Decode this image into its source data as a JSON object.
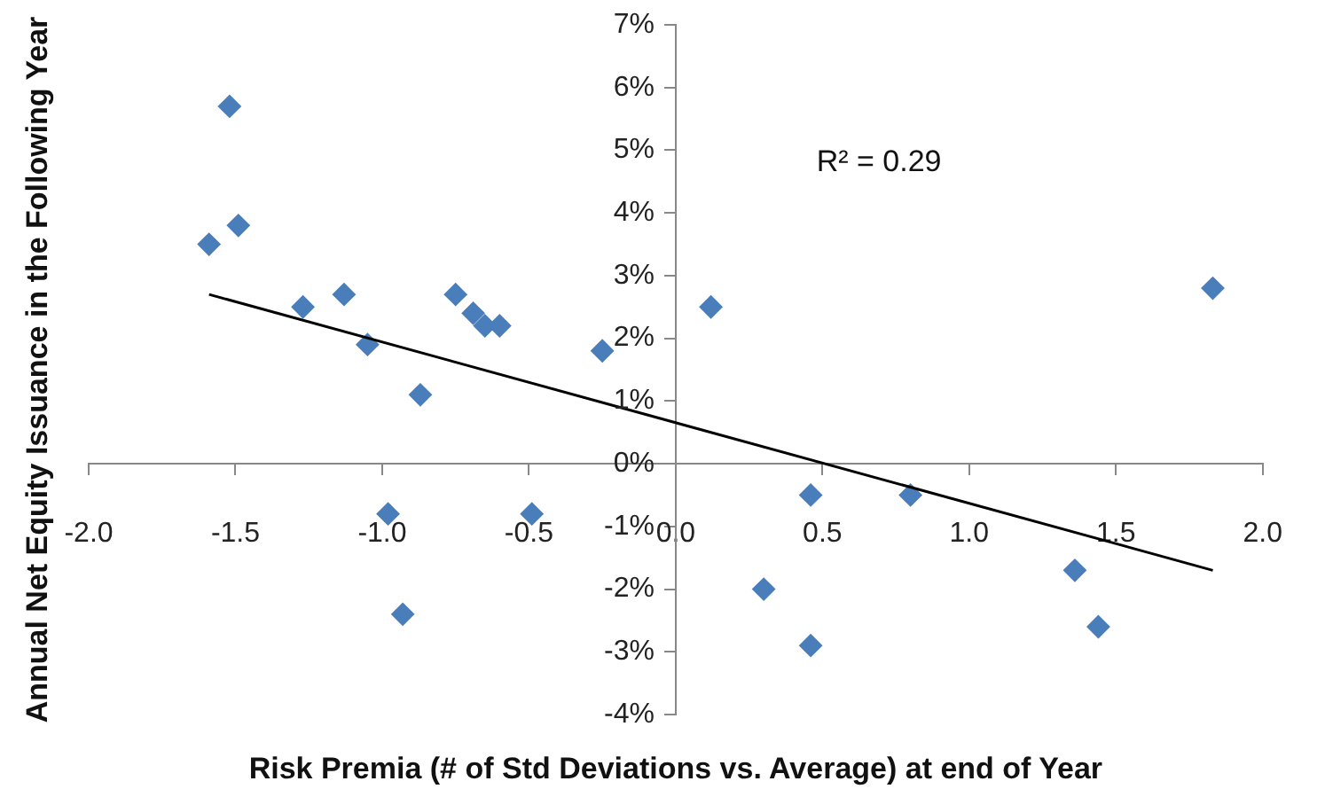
{
  "chart_data": {
    "type": "scatter",
    "xlabel": "Risk Premia (# of Std Deviations vs. Average) at end of Year",
    "ylabel": "Annual Net Equity Issuance in the Following Year",
    "annotations": [
      "R² = 0.29"
    ],
    "series": [
      {
        "type": "scatter",
        "color": "#4a7ebb",
        "marker": "diamond",
        "x": [
          -1.59,
          -1.52,
          -1.49,
          -1.27,
          -1.13,
          -1.05,
          -0.87,
          -0.98,
          -0.93,
          -0.75,
          -0.69,
          -0.65,
          -0.6,
          -0.49,
          -0.25,
          0.12,
          0.46,
          0.3,
          0.46,
          0.8,
          1.36,
          1.44,
          1.83
        ],
        "values": [
          3.5,
          5.7,
          3.8,
          2.5,
          2.7,
          1.9,
          1.1,
          -0.8,
          -2.4,
          2.7,
          2.4,
          2.2,
          2.2,
          -0.8,
          1.8,
          2.5,
          -0.5,
          -2,
          -2.9,
          -0.5,
          -1.7,
          -2.6,
          2.8
        ]
      },
      {
        "type": "line",
        "color": "#000000",
        "marker": "none",
        "x": [
          -1.59,
          1.83
        ],
        "values": [
          2.7,
          -1.7
        ]
      }
    ],
    "xlim": [
      -2,
      2
    ],
    "xticks": [
      {
        "value": -2,
        "label": "-2.0"
      },
      {
        "value": -1.5,
        "label": "-1.5"
      },
      {
        "value": -1,
        "label": "-1.0"
      },
      {
        "value": -0.5,
        "label": "-0.5"
      },
      {
        "value": 0,
        "label": "0.0"
      },
      {
        "value": 0.5,
        "label": "0.5"
      },
      {
        "value": 1,
        "label": "1.0"
      },
      {
        "value": 1.5,
        "label": "1.5"
      },
      {
        "value": 2,
        "label": "2.0"
      }
    ],
    "ylim": [
      -4,
      7
    ],
    "yticks": [
      {
        "value": -4,
        "label": "-4%"
      },
      {
        "value": -3,
        "label": "-3%"
      },
      {
        "value": -2,
        "label": "-2%"
      },
      {
        "value": -1,
        "label": "-1%"
      },
      {
        "value": 0,
        "label": "0%"
      },
      {
        "value": 1,
        "label": "1%"
      },
      {
        "value": 2,
        "label": "2%"
      },
      {
        "value": 3,
        "label": "3%"
      },
      {
        "value": 4,
        "label": "4%"
      },
      {
        "value": 5,
        "label": "5%"
      },
      {
        "value": 6,
        "label": "6%"
      },
      {
        "value": 7,
        "label": "7%"
      }
    ],
    "grid": false,
    "legend": false
  }
}
